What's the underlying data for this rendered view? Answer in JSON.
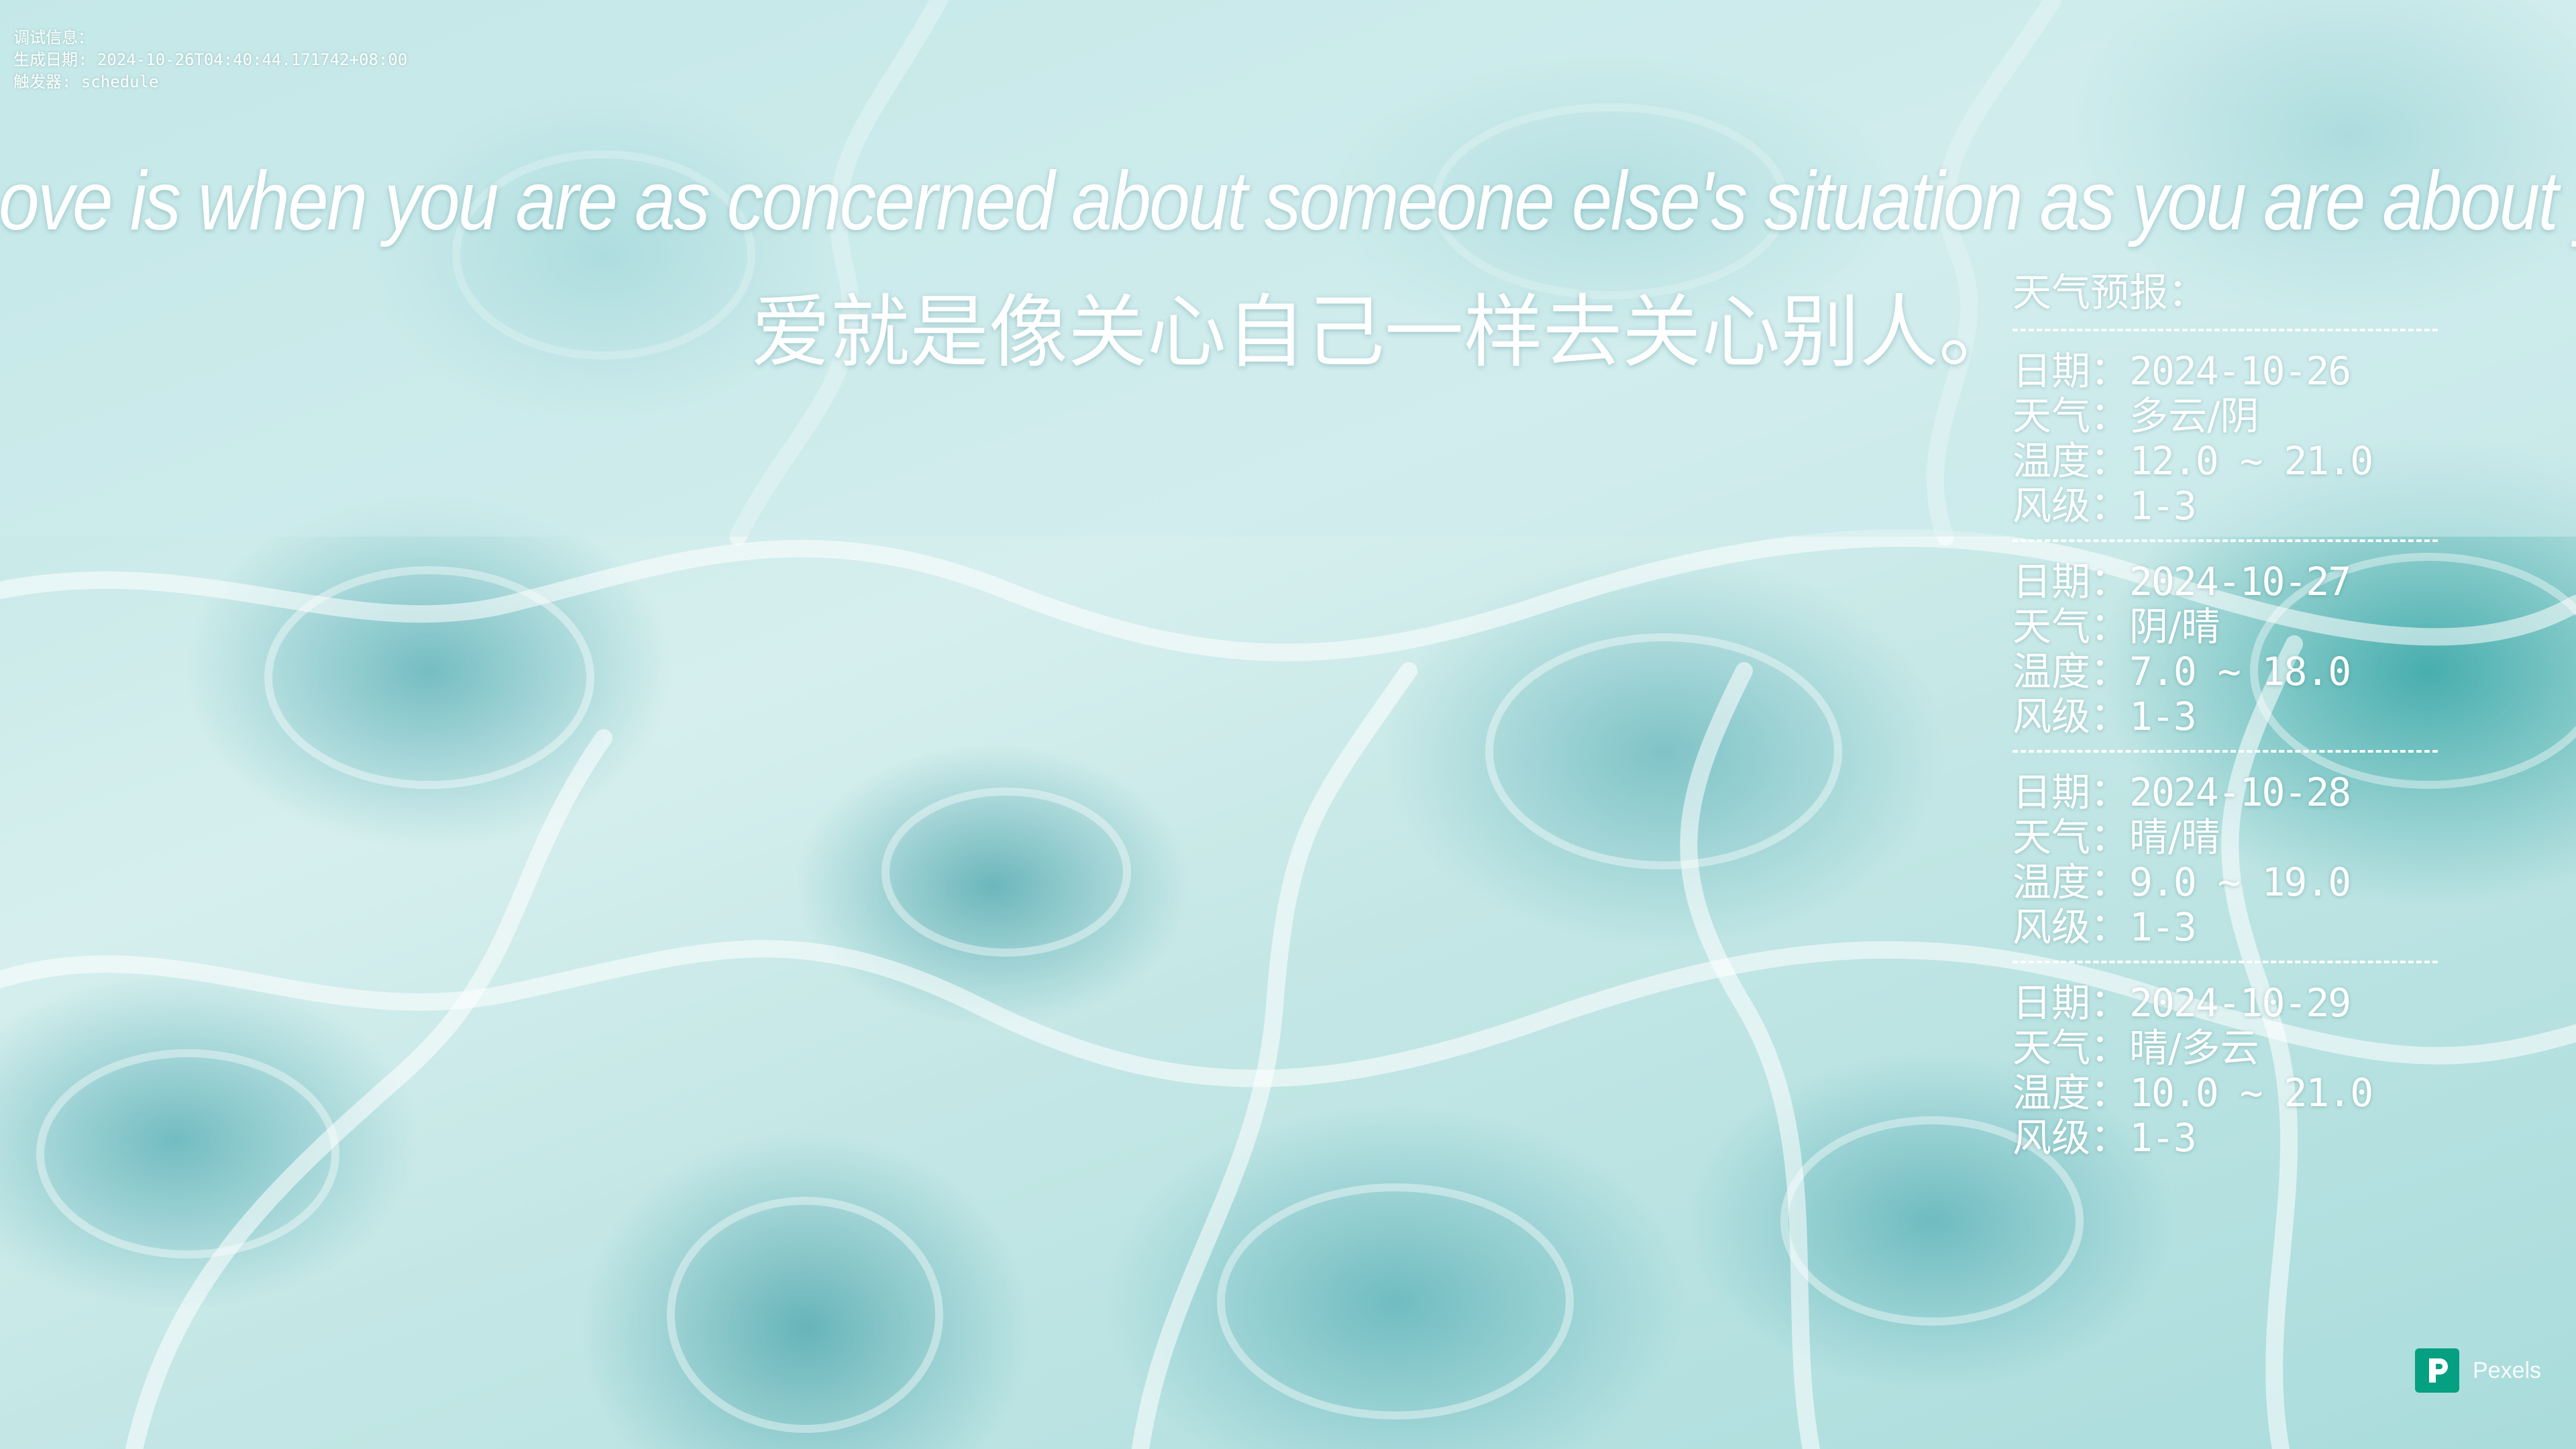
{
  "debug": {
    "label": "调试信息：",
    "generated": "生成日期: 2024-10-26T04:40:44.171742+08:00",
    "trigger": "触发器: schedule"
  },
  "quote": {
    "en": "Love is when you are as concerned about someone else's situation as you are about your own.",
    "zh": "爱就是像关心自己一样去关心别人。"
  },
  "weather": {
    "title": "天气预报：",
    "field_labels": {
      "date": "日期：",
      "weather": "天气：",
      "temperature": "温度：",
      "wind": "风级："
    },
    "days": [
      {
        "date": "2024-10-26",
        "weather": "多云/阴",
        "temperature": "12.0 ~ 21.0",
        "wind": "1-3"
      },
      {
        "date": "2024-10-27",
        "weather": "阴/晴",
        "temperature": "7.0 ~ 18.0",
        "wind": "1-3"
      },
      {
        "date": "2024-10-28",
        "weather": "晴/晴",
        "temperature": "9.0 ~ 19.0",
        "wind": "1-3"
      },
      {
        "date": "2024-10-29",
        "weather": "晴/多云",
        "temperature": "10.0 ~ 21.0",
        "wind": "1-3"
      }
    ]
  },
  "credit": {
    "text": "Pexels",
    "brand_color": "#05a081"
  },
  "colors": {
    "text": "#ffffff",
    "water_accent": "#2a9aa0"
  }
}
